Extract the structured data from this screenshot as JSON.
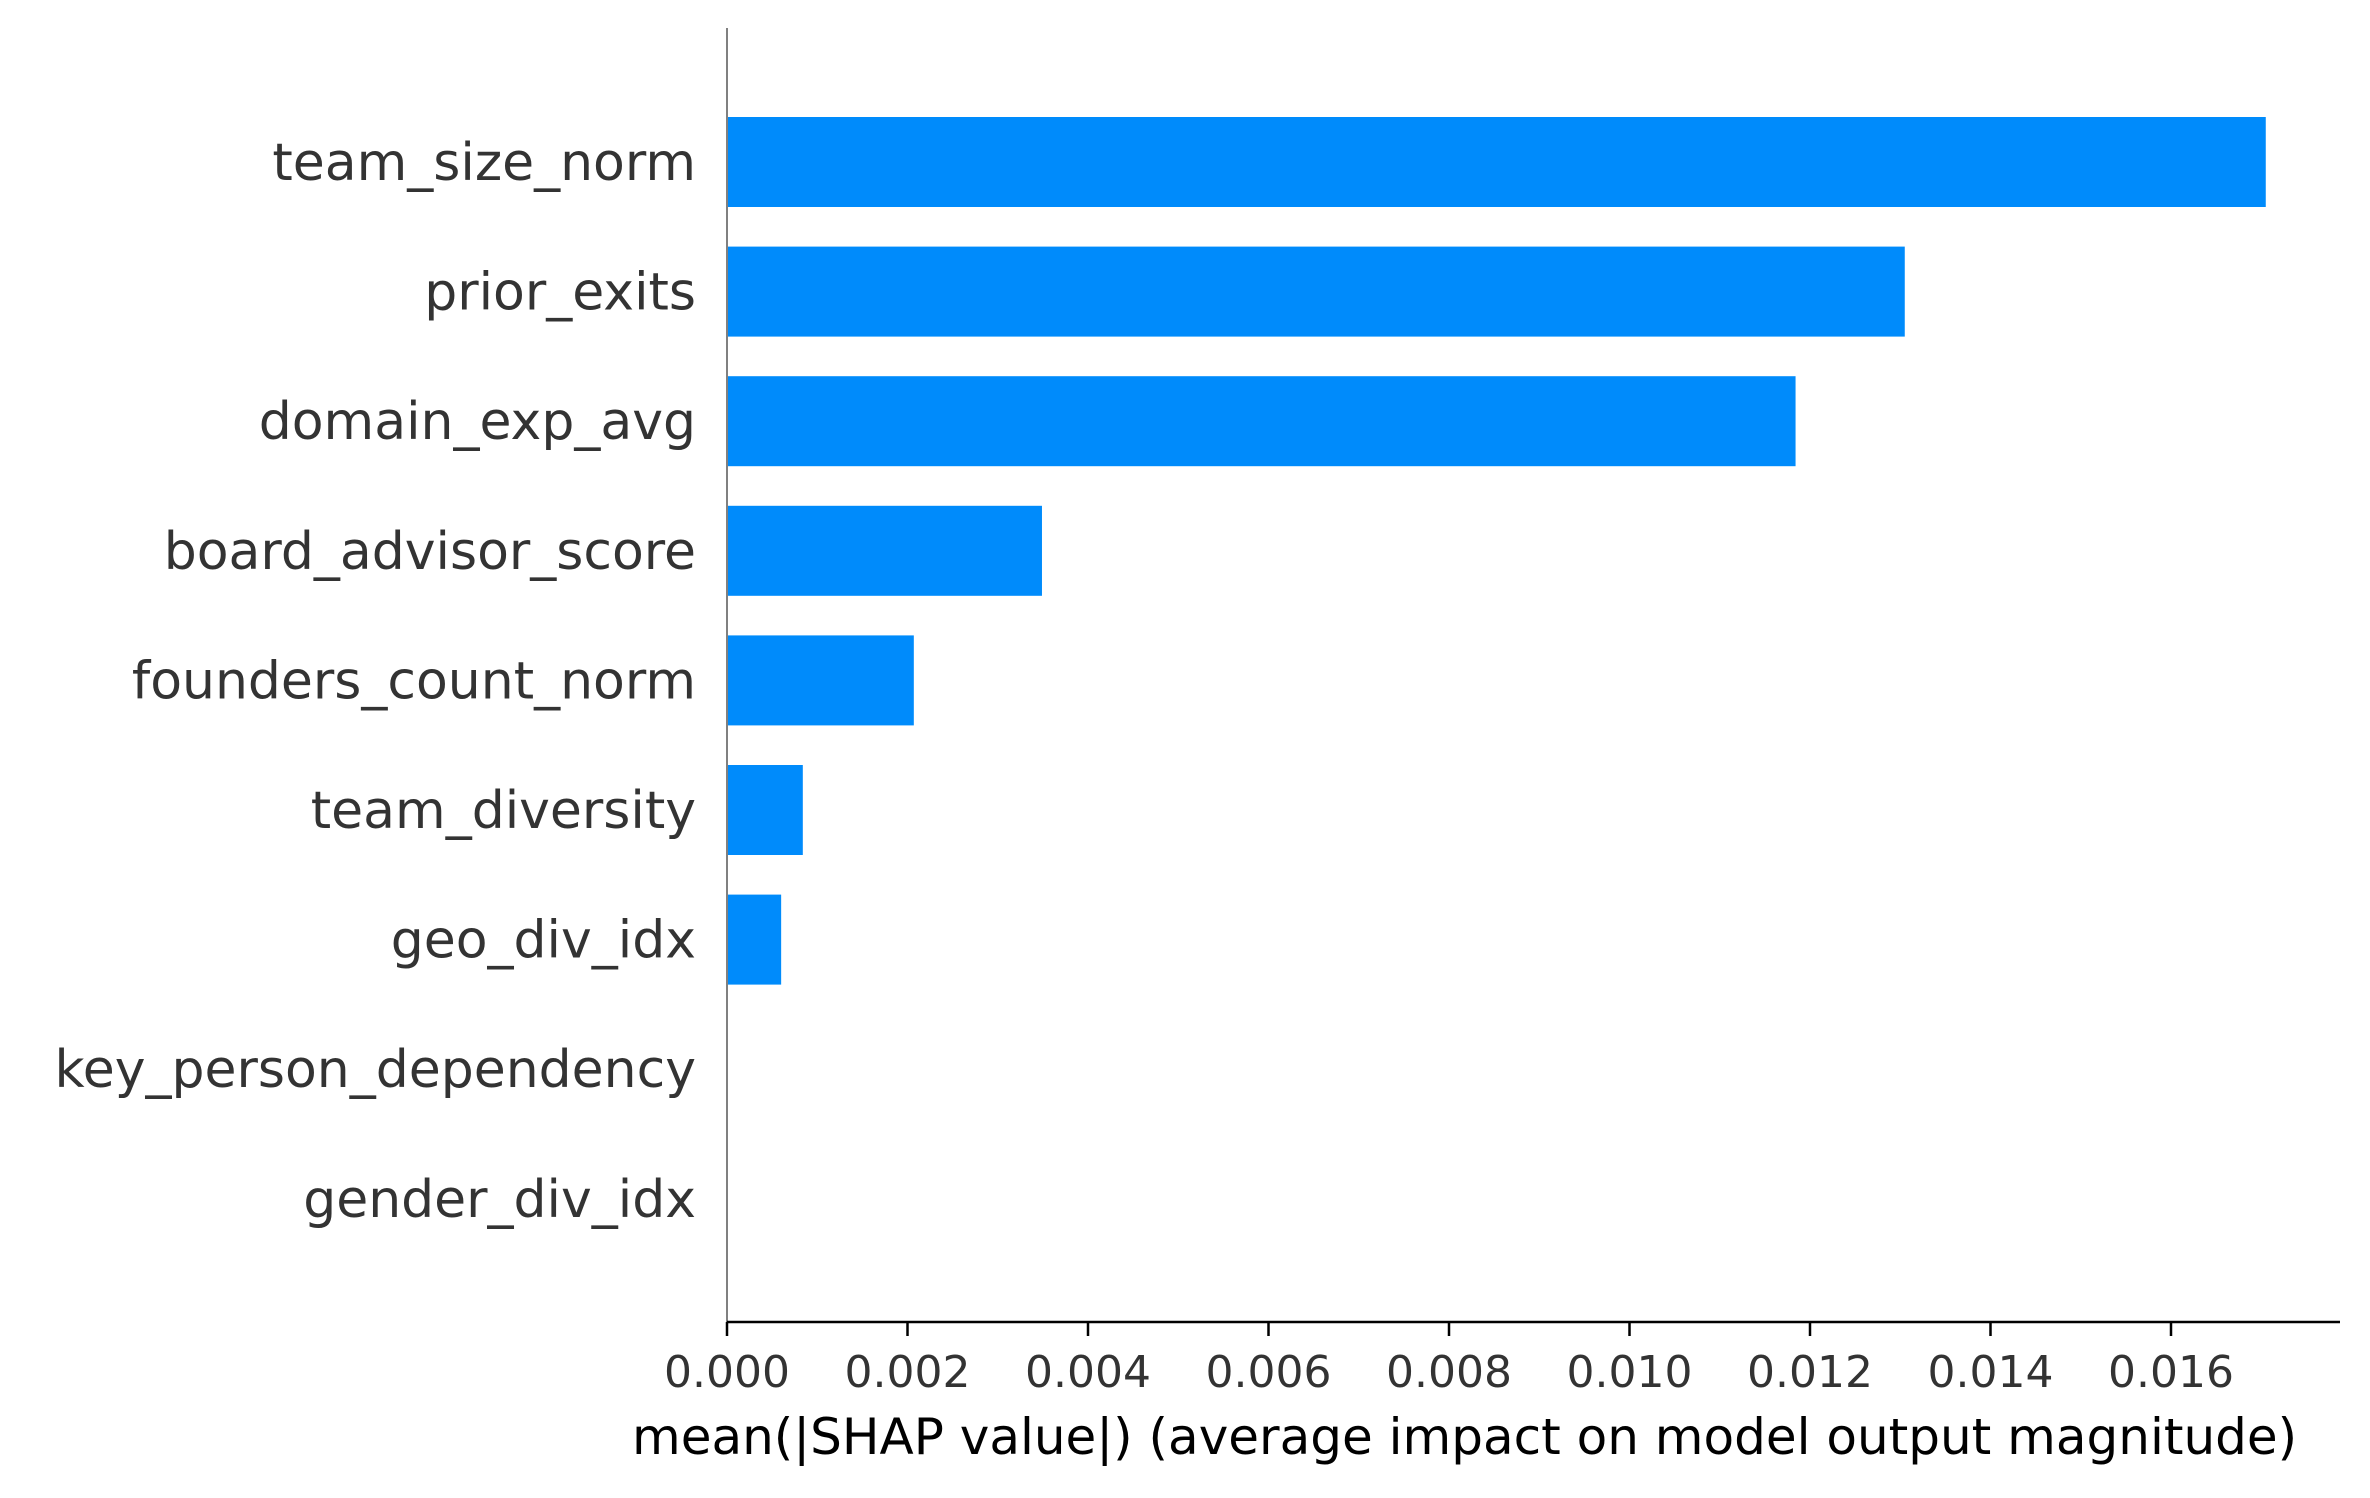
{
  "chart_data": {
    "type": "bar",
    "orientation": "horizontal",
    "categories": [
      "team_size_norm",
      "prior_exits",
      "domain_exp_avg",
      "board_advisor_score",
      "founders_count_norm",
      "team_diversity",
      "geo_div_idx",
      "key_person_dependency",
      "gender_div_idx"
    ],
    "values": [
      0.01705,
      0.01305,
      0.01184,
      0.00349,
      0.00207,
      0.00084,
      0.0006,
      0.0,
      0.0
    ],
    "ticks": [
      "0.000",
      "0.002",
      "0.004",
      "0.006",
      "0.008",
      "0.010",
      "0.012",
      "0.014",
      "0.016"
    ],
    "tick_values": [
      0,
      0.002,
      0.004,
      0.006,
      0.008,
      0.01,
      0.012,
      0.014,
      0.016
    ],
    "xlabel": "mean(|SHAP value|) (average impact on model output magnitude)",
    "xlim": [
      0,
      0.0179
    ],
    "bar_color": "#008bfb",
    "grid": false
  }
}
